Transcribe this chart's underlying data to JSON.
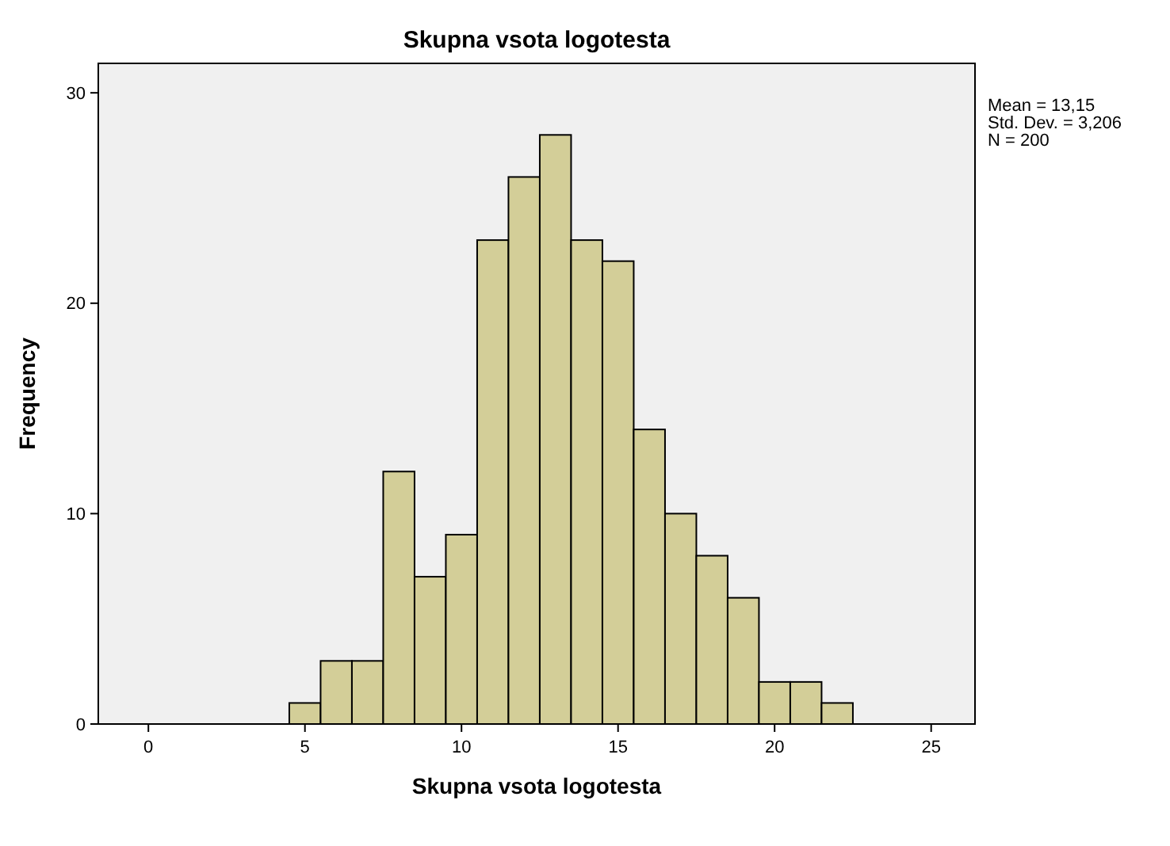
{
  "chart_data": {
    "type": "histogram",
    "title": "Skupna vsota logotesta",
    "xlabel": "Skupna vsota logotesta",
    "ylabel": "Frequency",
    "bins": [
      4.5,
      5.5,
      6.5,
      7.5,
      8.5,
      9.5,
      10.5,
      11.5,
      12.5,
      13.5,
      14.5,
      15.5,
      16.5,
      17.5,
      18.5,
      19.5,
      20.5,
      21.5,
      22.5
    ],
    "values": [
      1,
      3,
      3,
      12,
      7,
      9,
      23,
      26,
      28,
      23,
      22,
      14,
      10,
      8,
      6,
      2,
      2,
      1
    ],
    "color": "#d3ce98",
    "xlim": [
      -1.6,
      26.4
    ],
    "xticks": [
      0,
      5,
      10,
      15,
      20,
      25
    ],
    "ylim": [
      0,
      31.4
    ],
    "yticks": [
      0,
      10,
      20,
      30
    ],
    "grid": false,
    "annotations": [
      "Mean = 13,15",
      "Std. Dev. = 3,206",
      "N = 200"
    ]
  }
}
